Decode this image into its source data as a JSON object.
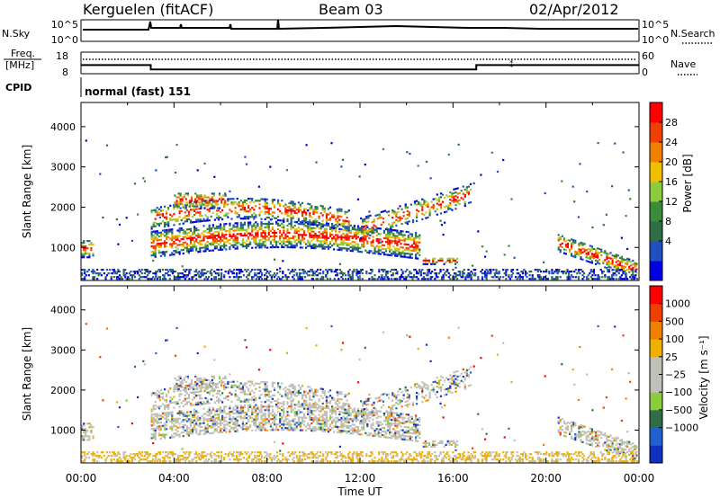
{
  "header": {
    "station": "Kerguelen (fitACF)",
    "beam": "Beam 03",
    "date": "02/Apr/2012"
  },
  "top_panels": {
    "nsky_label": "N.Sky",
    "nsky_ticks": [
      "10^5",
      "10^0"
    ],
    "nsearch_label": "N.Search",
    "nsearch_ticks": [
      "10^5",
      "10^0"
    ],
    "freq_label_1": "Freq.",
    "freq_label_2": "[MHz]",
    "freq_ticks": [
      "18",
      "8"
    ],
    "freq_trace_mhz": [
      [
        0,
        12
      ],
      [
        3,
        12
      ],
      [
        3,
        10
      ],
      [
        17,
        10
      ],
      [
        17,
        12
      ],
      [
        24,
        12
      ]
    ],
    "nave_label": "Nave",
    "nave_ticks": [
      "60",
      "0"
    ],
    "cpid_label": "CPID",
    "cpid_text": "normal (fast) 151"
  },
  "chart_data": [
    {
      "type": "heatmap",
      "name": "power",
      "ylabel": "Slant Range [km]",
      "ylim": [
        180,
        4600
      ],
      "xlim": [
        0,
        24
      ],
      "y_ticks": [
        "1000",
        "2000",
        "3000",
        "4000"
      ],
      "colorbar": {
        "label": "Power [dB]",
        "ticks": [
          "28",
          "24",
          "20",
          "16",
          "12",
          "8",
          "4"
        ],
        "colors": [
          "#0000e0",
          "#2050c0",
          "#306e48",
          "#3a8c3a",
          "#8ccb3c",
          "#f0c000",
          "#f08000",
          "#f04000",
          "#ff0000"
        ]
      }
    },
    {
      "type": "heatmap",
      "name": "velocity",
      "ylabel": "Slant Range [km]",
      "ylim": [
        180,
        4600
      ],
      "xlim": [
        0,
        24
      ],
      "y_ticks": [
        "1000",
        "2000",
        "3000",
        "4000"
      ],
      "colorbar": {
        "label": "Velocity [m s⁻¹]",
        "ticks": [
          "1000",
          "500",
          "100",
          "25",
          "−25",
          "−100",
          "−500",
          "−1000"
        ],
        "colors": [
          "#1030c0",
          "#2060d0",
          "#306e48",
          "#8ccb3c",
          "#c0c0b8",
          "#c0c0b8",
          "#f0b000",
          "#f08000",
          "#f04000",
          "#ff0000"
        ]
      },
      "x_ticks": [
        "00:00",
        "04:00",
        "08:00",
        "12:00",
        "16:00",
        "20:00",
        "00:00"
      ],
      "xlabel": "Time UT"
    }
  ]
}
